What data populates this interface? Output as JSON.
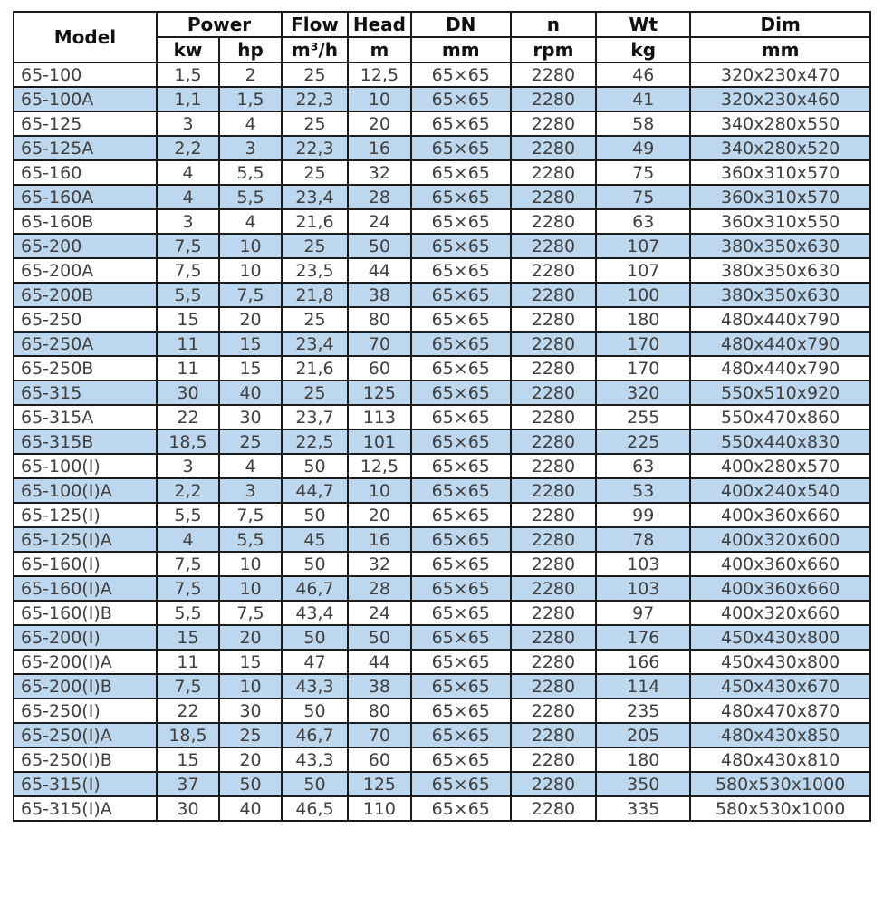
{
  "colors": {
    "row_alt": "#bdd7ee",
    "row_base": "#ffffff",
    "border": "#1b1b1b",
    "text": "#3f3f3f",
    "header_text": "#111111"
  },
  "table": {
    "header": {
      "model": "Model",
      "power": "Power",
      "flow": "Flow",
      "head": "Head",
      "dn": "DN",
      "n": "n",
      "wt": "Wt",
      "dim": "Dim",
      "units": {
        "kw": "kw",
        "hp": "hp",
        "flow": "m³/h",
        "head": "m",
        "dn": "mm",
        "n": "rpm",
        "wt": "kg",
        "dim": "mm"
      }
    },
    "rows": [
      [
        "65-100",
        "1,5",
        "2",
        "25",
        "12,5",
        "65×65",
        "2280",
        "46",
        "320x230x470"
      ],
      [
        "65-100A",
        "1,1",
        "1,5",
        "22,3",
        "10",
        "65×65",
        "2280",
        "41",
        "320x230x460"
      ],
      [
        "65-125",
        "3",
        "4",
        "25",
        "20",
        "65×65",
        "2280",
        "58",
        "340x280x550"
      ],
      [
        "65-125A",
        "2,2",
        "3",
        "22,3",
        "16",
        "65×65",
        "2280",
        "49",
        "340x280x520"
      ],
      [
        "65-160",
        "4",
        "5,5",
        "25",
        "32",
        "65×65",
        "2280",
        "75",
        "360x310x570"
      ],
      [
        "65-160A",
        "4",
        "5,5",
        "23,4",
        "28",
        "65×65",
        "2280",
        "75",
        "360x310x570"
      ],
      [
        "65-160B",
        "3",
        "4",
        "21,6",
        "24",
        "65×65",
        "2280",
        "63",
        "360x310x550"
      ],
      [
        "65-200",
        "7,5",
        "10",
        "25",
        "50",
        "65×65",
        "2280",
        "107",
        "380x350x630"
      ],
      [
        "65-200A",
        "7,5",
        "10",
        "23,5",
        "44",
        "65×65",
        "2280",
        "107",
        "380x350x630"
      ],
      [
        "65-200B",
        "5,5",
        "7,5",
        "21,8",
        "38",
        "65×65",
        "2280",
        "100",
        "380x350x630"
      ],
      [
        "65-250",
        "15",
        "20",
        "25",
        "80",
        "65×65",
        "2280",
        "180",
        "480x440x790"
      ],
      [
        "65-250A",
        "11",
        "15",
        "23,4",
        "70",
        "65×65",
        "2280",
        "170",
        "480x440x790"
      ],
      [
        "65-250B",
        "11",
        "15",
        "21,6",
        "60",
        "65×65",
        "2280",
        "170",
        "480x440x790"
      ],
      [
        "65-315",
        "30",
        "40",
        "25",
        "125",
        "65×65",
        "2280",
        "320",
        "550x510x920"
      ],
      [
        "65-315A",
        "22",
        "30",
        "23,7",
        "113",
        "65×65",
        "2280",
        "255",
        "550x470x860"
      ],
      [
        "65-315B",
        "18,5",
        "25",
        "22,5",
        "101",
        "65×65",
        "2280",
        "225",
        "550x440x830"
      ],
      [
        "65-100(I)",
        "3",
        "4",
        "50",
        "12,5",
        "65×65",
        "2280",
        "63",
        "400x280x570"
      ],
      [
        "65-100(I)A",
        "2,2",
        "3",
        "44,7",
        "10",
        "65×65",
        "2280",
        "53",
        "400x240x540"
      ],
      [
        "65-125(I)",
        "5,5",
        "7,5",
        "50",
        "20",
        "65×65",
        "2280",
        "99",
        "400x360x660"
      ],
      [
        "65-125(I)A",
        "4",
        "5,5",
        "45",
        "16",
        "65×65",
        "2280",
        "78",
        "400x320x600"
      ],
      [
        "65-160(I)",
        "7,5",
        "10",
        "50",
        "32",
        "65×65",
        "2280",
        "103",
        "400x360x660"
      ],
      [
        "65-160(I)A",
        "7,5",
        "10",
        "46,7",
        "28",
        "65×65",
        "2280",
        "103",
        "400x360x660"
      ],
      [
        "65-160(I)B",
        "5,5",
        "7,5",
        "43,4",
        "24",
        "65×65",
        "2280",
        "97",
        "400x320x660"
      ],
      [
        "65-200(I)",
        "15",
        "20",
        "50",
        "50",
        "65×65",
        "2280",
        "176",
        "450x430x800"
      ],
      [
        "65-200(I)A",
        "11",
        "15",
        "47",
        "44",
        "65×65",
        "2280",
        "166",
        "450x430x800"
      ],
      [
        "65-200(I)B",
        "7,5",
        "10",
        "43,3",
        "38",
        "65×65",
        "2280",
        "114",
        "450x430x670"
      ],
      [
        "65-250(I)",
        "22",
        "30",
        "50",
        "80",
        "65×65",
        "2280",
        "235",
        "480x470x870"
      ],
      [
        "65-250(I)A",
        "18,5",
        "25",
        "46,7",
        "70",
        "65×65",
        "2280",
        "205",
        "480x430x850"
      ],
      [
        "65-250(I)B",
        "15",
        "20",
        "43,3",
        "60",
        "65×65",
        "2280",
        "180",
        "480x430x810"
      ],
      [
        "65-315(I)",
        "37",
        "50",
        "50",
        "125",
        "65×65",
        "2280",
        "350",
        "580x530x1000"
      ],
      [
        "65-315(I)A",
        "30",
        "40",
        "46,5",
        "110",
        "65×65",
        "2280",
        "335",
        "580x530x1000"
      ]
    ]
  }
}
